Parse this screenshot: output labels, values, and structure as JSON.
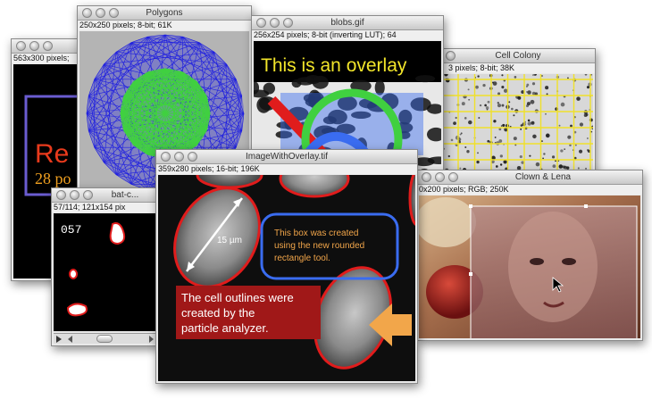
{
  "windows": {
    "red_text": {
      "info": "563x300 pixels;",
      "text_line1": "Re",
      "text_line2": "28 po"
    },
    "polygons": {
      "title": "Polygons",
      "info": "250x250 pixels; 8-bit; 61K"
    },
    "blobs": {
      "title": "blobs.gif",
      "info": "256x254 pixels; 8-bit (inverting LUT); 64",
      "overlay_text": "This is an overlay"
    },
    "cell_colony": {
      "title": "Cell Colony",
      "info": "3 pixels; 8-bit; 38K"
    },
    "bat": {
      "title": "bat-c...",
      "info": "57/114; 121x154 pix",
      "frame_label": "057"
    },
    "overlay": {
      "title": "ImageWithOverlay.tif",
      "info": "359x280 pixels; 16-bit; 196K",
      "measure_label": "15 µm",
      "box_text": [
        "This box was created",
        "using the new rounded",
        "rectangle tool."
      ],
      "cell_text": [
        "The cell outlines were",
        "created by the",
        "particle analyzer."
      ]
    },
    "clown": {
      "title": "Clown & Lena",
      "info": "0x200 pixels; RGB; 250K"
    }
  },
  "colors": {
    "overlay_blue": "#3a6cf0",
    "overlay_orange": "#f2a64a",
    "cell_outline_red": "#e01c1c",
    "label_box_red": "#a01818",
    "polygon_blue": "#1f1fe0",
    "polygon_green": "#40d040",
    "grid_yellow": "#f0e02a"
  }
}
